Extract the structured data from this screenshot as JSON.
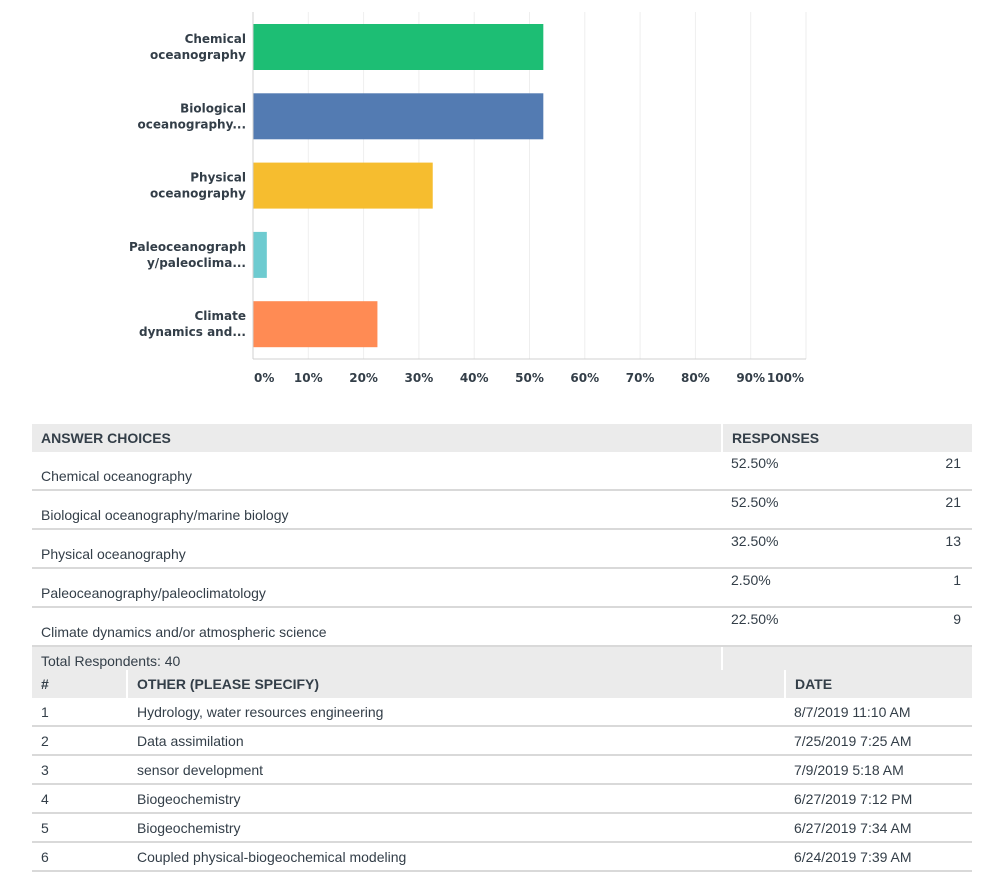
{
  "chart_data": {
    "type": "bar",
    "orientation": "horizontal",
    "categories": [
      [
        "Chemical",
        "oceanography"
      ],
      [
        "Biological",
        "oceanography..."
      ],
      [
        "Physical",
        "oceanography"
      ],
      [
        "Paleoceanograph",
        "y/paleoclima..."
      ],
      [
        "Climate",
        "dynamics and..."
      ]
    ],
    "values": [
      52.5,
      52.5,
      32.5,
      2.5,
      22.5
    ],
    "colors": [
      "#1dbe74",
      "#537bb2",
      "#f6bd2f",
      "#6ecbd0",
      "#ff8b54"
    ],
    "xlim": [
      0,
      100
    ],
    "xticks": [
      "0%",
      "10%",
      "20%",
      "30%",
      "40%",
      "50%",
      "60%",
      "70%",
      "80%",
      "90%",
      "100%"
    ],
    "grid": true
  },
  "answers": {
    "header_choice": "ANSWER CHOICES",
    "header_responses": "RESPONSES",
    "rows": [
      {
        "choice": "Chemical oceanography",
        "percent": "52.50%",
        "count": "21"
      },
      {
        "choice": "Biological oceanography/marine biology",
        "percent": "52.50%",
        "count": "21"
      },
      {
        "choice": "Physical oceanography",
        "percent": "32.50%",
        "count": "13"
      },
      {
        "choice": "Paleoceanography/paleoclimatology",
        "percent": "2.50%",
        "count": "1"
      },
      {
        "choice": "Climate dynamics and/or atmospheric science",
        "percent": "22.50%",
        "count": "9"
      }
    ],
    "total": "Total Respondents: 40"
  },
  "other": {
    "header_num": "#",
    "header_text": "OTHER (PLEASE SPECIFY)",
    "header_date": "DATE",
    "rows": [
      {
        "num": "1",
        "text": "Hydrology, water resources engineering",
        "date": "8/7/2019 11:10 AM"
      },
      {
        "num": "2",
        "text": "Data assimilation",
        "date": "7/25/2019 7:25 AM"
      },
      {
        "num": "3",
        "text": "sensor development",
        "date": "7/9/2019 5:18 AM"
      },
      {
        "num": "4",
        "text": "Biogeochemistry",
        "date": "6/27/2019 7:12 PM"
      },
      {
        "num": "5",
        "text": "Biogeochemistry",
        "date": "6/27/2019 7:34 AM"
      },
      {
        "num": "6",
        "text": "Coupled physical-biogeochemical modeling",
        "date": "6/24/2019 7:39 AM"
      }
    ]
  }
}
